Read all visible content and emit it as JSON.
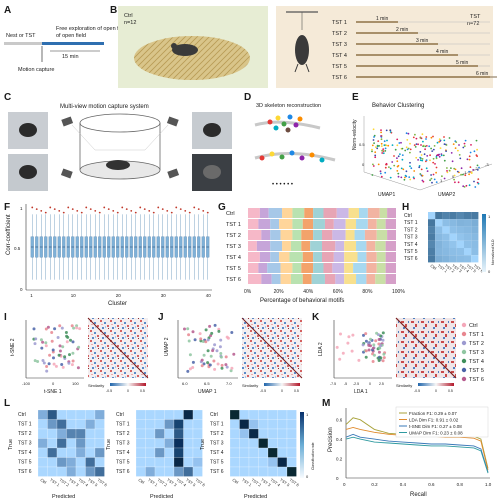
{
  "panels": {
    "A": {
      "letter": "A",
      "stage1": "Nest or TST",
      "stage2": "Free exploration of open field",
      "duration": "15 min",
      "capture": "Motion capture"
    },
    "B": {
      "letter": "B",
      "ctrl_label": "Ctrl",
      "ctrl_n": "n=12",
      "tst_label": "TST",
      "tst_n": "n=72",
      "groups": [
        {
          "name": "TST 1",
          "duration": "1 min",
          "minutes": 1
        },
        {
          "name": "TST 2",
          "duration": "2 min",
          "minutes": 2
        },
        {
          "name": "TST 3",
          "duration": "3 min",
          "minutes": 3
        },
        {
          "name": "TST 4",
          "duration": "4 min",
          "minutes": 4
        },
        {
          "name": "TST 5",
          "duration": "5 min",
          "minutes": 5
        },
        {
          "name": "TST 6",
          "duration": "6 min",
          "minutes": 6
        }
      ]
    },
    "C": {
      "letter": "C",
      "title": "Multi-view motion capture system"
    },
    "D": {
      "letter": "D",
      "title": "3D skeleton reconstruction",
      "ellipsis": "• • • • • •"
    },
    "E": {
      "letter": "E",
      "title": "Behavior Clustering",
      "zlabel": "Norm-velocity",
      "xlabel": "UMAP1",
      "ylabel": "UMAP2",
      "xticks": [
        "1",
        "0",
        "-1",
        "-2",
        "-3"
      ],
      "zticks": [
        "0.5",
        "0"
      ]
    },
    "F": {
      "letter": "F",
      "ylabel": "Corr-coefficient",
      "xlabel": "Cluster",
      "yticks": [
        "1",
        "0.5",
        "0"
      ],
      "xticks": [
        "1",
        "10",
        "20",
        "30",
        "40"
      ]
    },
    "G": {
      "letter": "G",
      "rows": [
        "Ctrl",
        "TST 1",
        "TST 2",
        "TST 3",
        "TST 4",
        "TST 5",
        "TST 6"
      ],
      "xticks": [
        "0%",
        "20%",
        "40%",
        "60%",
        "80%",
        "100%"
      ],
      "xlabel": "Percentage of behavioral motifs"
    },
    "H": {
      "letter": "H",
      "labels": [
        "Ctrl",
        "TST 1",
        "TST 2",
        "TST 3",
        "TST 4",
        "TST 5",
        "TST 6"
      ],
      "colorbar_label": "Normalized KLD",
      "cb_ticks": [
        "1",
        "0"
      ]
    },
    "I": {
      "letter": "I",
      "xlabel": "t-SNE 1",
      "ylabel": "t-SNE 2",
      "xticks": [
        "-100",
        "0",
        "100"
      ],
      "cb_label": "Similarity",
      "cb_ticks": [
        "-0.5",
        "0",
        "0.5"
      ]
    },
    "J": {
      "letter": "J",
      "xlabel": "UMAP 1",
      "ylabel": "UMAP 2",
      "xticks": [
        "6.0",
        "6.5",
        "7.0"
      ],
      "cb_label": "Similarity",
      "cb_ticks": [
        "-0.5",
        "0",
        "0.5"
      ]
    },
    "K": {
      "letter": "K",
      "xlabel": "LDA 1",
      "ylabel": "LDA 2",
      "xticks": [
        "-7.5",
        "-5",
        "-2.5",
        "0",
        "2.5"
      ],
      "cb_label": "Similarity",
      "cb_ticks": [
        "-0.5",
        "0",
        "0.5"
      ],
      "legend": [
        {
          "name": "Ctrl",
          "color": "#f4a7b9"
        },
        {
          "name": "TST 1",
          "color": "#e8868f"
        },
        {
          "name": "TST 2",
          "color": "#9c9ad0"
        },
        {
          "name": "TST 3",
          "color": "#8fc6a1"
        },
        {
          "name": "TST 4",
          "color": "#3f8f5b"
        },
        {
          "name": "TST 5",
          "color": "#4a63a8"
        },
        {
          "name": "TST 6",
          "color": "#b65b8e"
        }
      ]
    },
    "L": {
      "letter": "L",
      "ylabel": "True",
      "xlabel": "Predicted",
      "labels": [
        "Ctrl",
        "TST 1",
        "TST 2",
        "TST 3",
        "TST 4",
        "TST 5",
        "TST 6"
      ],
      "cb_label": "Classification rate",
      "cb_ticks": [
        "1",
        "0"
      ]
    },
    "M": {
      "letter": "M",
      "xlabel": "Recall",
      "ylabel": "Precision",
      "xticks": [
        "0",
        "0.2",
        "0.4",
        "0.6",
        "0.8",
        "1.0"
      ],
      "yticks": [
        "0.6",
        "0.4",
        "0.2",
        "0"
      ],
      "legend": [
        {
          "name": "Fraction F1: 0.29 ± 0.07",
          "color": "#a8a23a"
        },
        {
          "name": "LDA Dim F1: 0.91 ± 0.02",
          "color": "#e08b2e"
        },
        {
          "name": "t-SNE Dim F1: 0.27 ± 0.08",
          "color": "#3a78b8"
        },
        {
          "name": "UMAP Dim F1: 0.23 ± 0.08",
          "color": "#2f9aa0"
        }
      ]
    }
  },
  "colors": {
    "accent_blue": "#2f6fb0",
    "cmap_blue": "#2166ac",
    "cmap_red": "#b2182b",
    "box_blue": "#7fb1d8",
    "outlier_red": "#c0392b"
  },
  "chart_data": [
    {
      "panel": "F",
      "type": "box",
      "xlabel": "Cluster",
      "ylabel": "Corr-coefficient",
      "ylim": [
        0,
        1
      ],
      "categories": [
        1,
        2,
        3,
        4,
        5,
        6,
        7,
        8,
        9,
        10,
        11,
        12,
        13,
        14,
        15,
        16,
        17,
        18,
        19,
        20,
        21,
        22,
        23,
        24,
        25,
        26,
        27,
        28,
        29,
        30,
        31,
        32,
        33,
        34,
        35,
        36,
        37,
        38,
        39,
        40
      ],
      "median": 0.5,
      "q1": 0.38,
      "q3": 0.62,
      "whisker_low": 0.12,
      "whisker_high": 0.88
    },
    {
      "panel": "G",
      "type": "stacked-bar-horizontal",
      "categories": [
        "Ctrl",
        "TST 1",
        "TST 2",
        "TST 3",
        "TST 4",
        "TST 5",
        "TST 6"
      ],
      "xlabel": "Percentage of behavioral motifs",
      "segment_colors": [
        "#f6b8c8",
        "#c6a5d9",
        "#a6c8e8",
        "#ffd59a",
        "#b9e2b0",
        "#f3a36b",
        "#9fd2d6",
        "#e7a5b5",
        "#cbb8e6",
        "#f8e08e",
        "#a7d8f0",
        "#f2b4a2",
        "#c9dfa6",
        "#d6a0c9"
      ],
      "values": [
        [
          8,
          6,
          9,
          7,
          8,
          6,
          7,
          9,
          8,
          7,
          6,
          8,
          5,
          6
        ],
        [
          7,
          8,
          6,
          9,
          7,
          7,
          8,
          6,
          8,
          7,
          8,
          6,
          6,
          7
        ],
        [
          9,
          6,
          7,
          8,
          6,
          8,
          6,
          7,
          9,
          6,
          7,
          8,
          7,
          6
        ],
        [
          6,
          9,
          8,
          6,
          7,
          6,
          8,
          9,
          6,
          8,
          7,
          6,
          7,
          7
        ],
        [
          8,
          7,
          6,
          7,
          9,
          7,
          6,
          8,
          7,
          9,
          6,
          7,
          6,
          7
        ],
        [
          7,
          6,
          9,
          8,
          6,
          8,
          7,
          6,
          8,
          6,
          9,
          7,
          6,
          7
        ],
        [
          9,
          7,
          6,
          7,
          8,
          6,
          9,
          7,
          6,
          8,
          7,
          6,
          7,
          7
        ]
      ]
    },
    {
      "panel": "H",
      "type": "heatmap",
      "categories": [
        "Ctrl",
        "TST 1",
        "TST 2",
        "TST 3",
        "TST 4",
        "TST 5",
        "TST 6"
      ],
      "values": [
        [
          0,
          0.85,
          0.75,
          0.8,
          0.7,
          0.78,
          0.82
        ],
        [
          0.85,
          0,
          0.2,
          0.25,
          0.3,
          0.28,
          0.35
        ],
        [
          0.75,
          0.2,
          0,
          0.18,
          0.22,
          0.25,
          0.3
        ],
        [
          0.8,
          0.25,
          0.18,
          0,
          0.15,
          0.2,
          0.25
        ],
        [
          0.7,
          0.3,
          0.22,
          0.15,
          0,
          0.18,
          0.22
        ],
        [
          0.78,
          0.28,
          0.25,
          0.2,
          0.18,
          0,
          0.2
        ],
        [
          0.82,
          0.35,
          0.3,
          0.25,
          0.22,
          0.2,
          0
        ]
      ]
    },
    {
      "panel": "L1",
      "type": "heatmap",
      "xlabel": "Predicted",
      "ylabel": "True",
      "categories": [
        "Ctrl",
        "TST 1",
        "TST 2",
        "TST 3",
        "TST 4",
        "TST 5",
        "TST 6"
      ],
      "values": [
        [
          0.2,
          0.6,
          0,
          0,
          0,
          0,
          0.2
        ],
        [
          0,
          0.3,
          0.5,
          0,
          0,
          0.2,
          0
        ],
        [
          0,
          0,
          0.2,
          0.4,
          0.4,
          0,
          0
        ],
        [
          0.2,
          0,
          0.5,
          0,
          0.3,
          0,
          0
        ],
        [
          0,
          0.5,
          0,
          0,
          0.2,
          0,
          0.3
        ],
        [
          0,
          0,
          0.3,
          0.2,
          0,
          0.5,
          0
        ],
        [
          0,
          0,
          0,
          0.2,
          0,
          0.3,
          0.5
        ]
      ]
    },
    {
      "panel": "L2",
      "type": "heatmap",
      "xlabel": "Predicted",
      "ylabel": "True",
      "categories": [
        "Ctrl",
        "TST 1",
        "TST 2",
        "TST 3",
        "TST 4",
        "TST 5",
        "TST 6"
      ],
      "values": [
        [
          0,
          0,
          0,
          0,
          0,
          0.9,
          0
        ],
        [
          0,
          0,
          0,
          0.3,
          0.7,
          0,
          0
        ],
        [
          0,
          0,
          0.3,
          0,
          0.6,
          0,
          0
        ],
        [
          0,
          0,
          0,
          0.2,
          0.8,
          0,
          0
        ],
        [
          0,
          0,
          0.3,
          0,
          0.7,
          0,
          0
        ],
        [
          0,
          0,
          0,
          0,
          0.9,
          0,
          0.1
        ],
        [
          0,
          0.2,
          0,
          0,
          0.3,
          0.5,
          0
        ]
      ]
    },
    {
      "panel": "L3",
      "type": "heatmap",
      "xlabel": "Predicted",
      "ylabel": "True",
      "categories": [
        "Ctrl",
        "TST 1",
        "TST 2",
        "TST 3",
        "TST 4",
        "TST 5",
        "TST 6"
      ],
      "values": [
        [
          1,
          0,
          0,
          0,
          0,
          0,
          0
        ],
        [
          0,
          0.9,
          0.1,
          0,
          0,
          0,
          0
        ],
        [
          0,
          0.1,
          0.9,
          0,
          0,
          0,
          0
        ],
        [
          0,
          0,
          0,
          1,
          0,
          0,
          0
        ],
        [
          0,
          0,
          0,
          0,
          1,
          0,
          0
        ],
        [
          0,
          0,
          0,
          0,
          0.1,
          0.9,
          0
        ],
        [
          0,
          0,
          0,
          0,
          0,
          0,
          1
        ]
      ]
    },
    {
      "panel": "M",
      "type": "line",
      "xlabel": "Recall",
      "ylabel": "Precision",
      "xlim": [
        0,
        1
      ],
      "ylim": [
        0,
        0.7
      ],
      "series": [
        {
          "name": "Fraction F1: 0.29 ± 0.07",
          "x": [
            0,
            0.05,
            0.1,
            0.2,
            0.3,
            0.4,
            0.5,
            0.6,
            0.7,
            0.8,
            0.9,
            0.95,
            1.0
          ],
          "y": [
            0.55,
            0.62,
            0.6,
            0.5,
            0.46,
            0.45,
            0.44,
            0.44,
            0.44,
            0.43,
            0.43,
            0.4,
            0.1
          ]
        },
        {
          "name": "LDA Dim F1: 0.91 ± 0.02",
          "x": [
            0,
            0.05,
            0.1,
            0.2,
            0.3,
            0.4,
            0.5,
            0.6,
            0.7,
            0.8,
            0.9,
            0.95,
            1.0
          ],
          "y": [
            0.5,
            0.52,
            0.5,
            0.47,
            0.45,
            0.44,
            0.43,
            0.43,
            0.42,
            0.42,
            0.41,
            0.38,
            0.08
          ]
        },
        {
          "name": "t-SNE Dim F1: 0.27 ± 0.08",
          "x": [
            0,
            0.05,
            0.1,
            0.2,
            0.3,
            0.4,
            0.5,
            0.6,
            0.7,
            0.8,
            0.9,
            0.95,
            1.0
          ],
          "y": [
            0.42,
            0.45,
            0.42,
            0.4,
            0.38,
            0.37,
            0.36,
            0.35,
            0.35,
            0.34,
            0.33,
            0.3,
            0.06
          ]
        },
        {
          "name": "UMAP Dim F1: 0.23 ± 0.08",
          "x": [
            0,
            0.05,
            0.1,
            0.2,
            0.3,
            0.4,
            0.5,
            0.6,
            0.7,
            0.8,
            0.9,
            0.95,
            1.0
          ],
          "y": [
            0.4,
            0.42,
            0.4,
            0.37,
            0.36,
            0.35,
            0.34,
            0.33,
            0.33,
            0.32,
            0.31,
            0.28,
            0.05
          ]
        }
      ]
    }
  ]
}
